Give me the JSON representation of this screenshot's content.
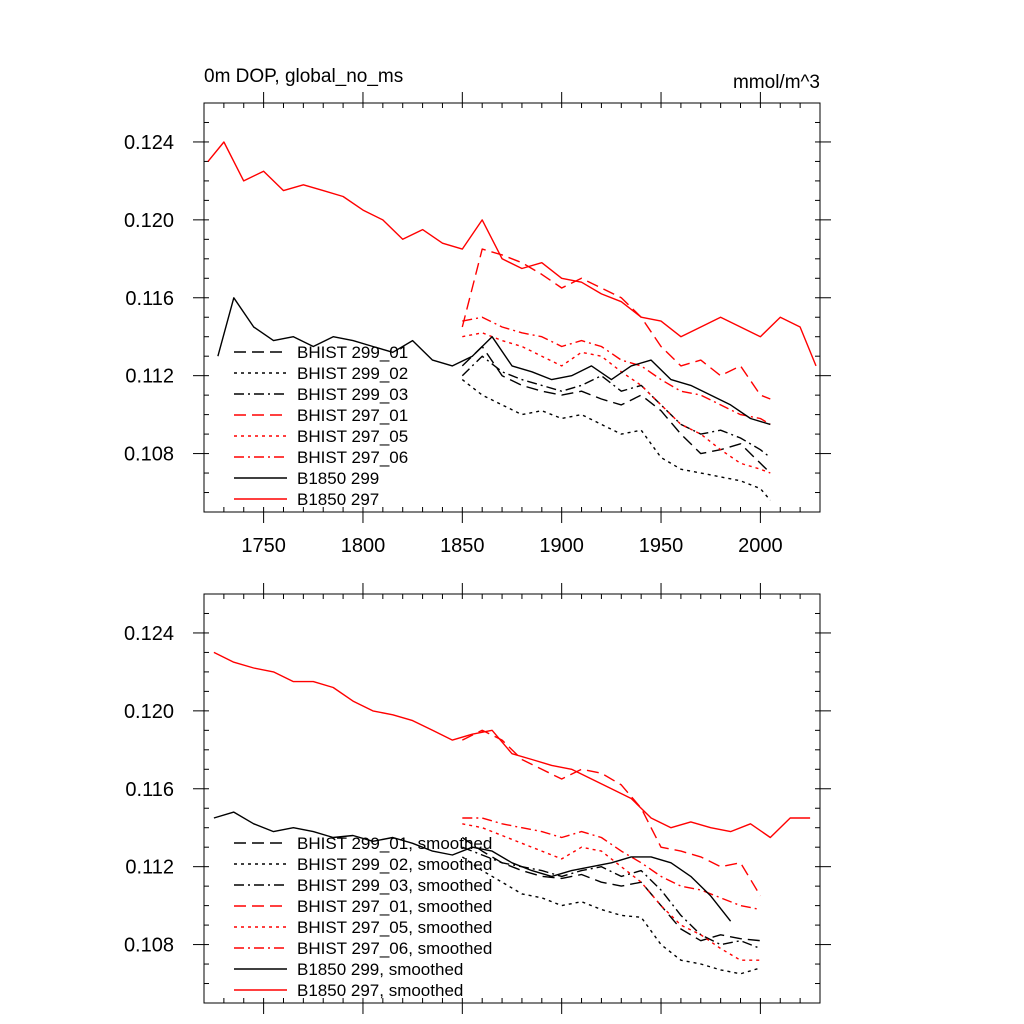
{
  "figure": {
    "title_left": "0m DOP, global_no_ms",
    "title_right": "mmol/m^3"
  },
  "chart_data": [
    {
      "type": "line",
      "title": "0m DOP, global_no_ms",
      "units": "mmol/m^3",
      "xlim": [
        1720,
        2030
      ],
      "ylim": [
        0.105,
        0.126
      ],
      "xticks": [
        1750,
        1800,
        1850,
        1900,
        1950,
        2000
      ],
      "xtick_labels": [
        "1750",
        "1800",
        "1850",
        "1900",
        "1950",
        "2000"
      ],
      "yticks": [
        0.108,
        0.112,
        0.116,
        0.12,
        0.124
      ],
      "ytick_labels": [
        "0.108",
        "0.112",
        "0.116",
        "0.120",
        "0.124"
      ],
      "legend_position": "lower-left",
      "series": [
        {
          "name": "BHIST 299_01",
          "color": "#000000",
          "style": "dash",
          "x": [
            1850,
            1860,
            1870,
            1880,
            1890,
            1900,
            1910,
            1920,
            1930,
            1940,
            1950,
            1960,
            1970,
            1980,
            1990,
            2000,
            2005
          ],
          "y": [
            0.1125,
            0.1135,
            0.112,
            0.1115,
            0.1112,
            0.111,
            0.1112,
            0.1108,
            0.1105,
            0.111,
            0.1102,
            0.109,
            0.108,
            0.1082,
            0.1085,
            0.1075,
            0.107
          ]
        },
        {
          "name": "BHIST 299_02",
          "color": "#000000",
          "style": "dot",
          "x": [
            1850,
            1860,
            1870,
            1880,
            1890,
            1900,
            1910,
            1920,
            1930,
            1940,
            1950,
            1960,
            1970,
            1980,
            1990,
            2000,
            2005
          ],
          "y": [
            0.1118,
            0.111,
            0.1105,
            0.11,
            0.1102,
            0.1098,
            0.11,
            0.1095,
            0.109,
            0.1092,
            0.1078,
            0.1072,
            0.107,
            0.1068,
            0.1066,
            0.1062,
            0.1056
          ]
        },
        {
          "name": "BHIST 299_03",
          "color": "#000000",
          "style": "dashdot",
          "x": [
            1850,
            1860,
            1870,
            1880,
            1890,
            1900,
            1910,
            1920,
            1930,
            1940,
            1950,
            1960,
            1970,
            1980,
            1990,
            2000,
            2005
          ],
          "y": [
            0.112,
            0.113,
            0.1122,
            0.1118,
            0.1115,
            0.1112,
            0.1115,
            0.112,
            0.1112,
            0.1115,
            0.1105,
            0.1095,
            0.109,
            0.1092,
            0.1088,
            0.1082,
            0.1078
          ]
        },
        {
          "name": "BHIST 297_01",
          "color": "#ff0000",
          "style": "dash",
          "x": [
            1850,
            1860,
            1870,
            1880,
            1890,
            1900,
            1910,
            1920,
            1930,
            1940,
            1950,
            1960,
            1970,
            1980,
            1990,
            2000,
            2005
          ],
          "y": [
            0.1145,
            0.1185,
            0.1182,
            0.1178,
            0.1172,
            0.1165,
            0.117,
            0.1165,
            0.116,
            0.115,
            0.1135,
            0.1125,
            0.1128,
            0.112,
            0.1125,
            0.111,
            0.1108
          ]
        },
        {
          "name": "BHIST 297_05",
          "color": "#ff0000",
          "style": "dot",
          "x": [
            1850,
            1860,
            1870,
            1880,
            1890,
            1900,
            1910,
            1920,
            1930,
            1940,
            1950,
            1960,
            1970,
            1980,
            1990,
            2000,
            2005
          ],
          "y": [
            0.114,
            0.1142,
            0.1138,
            0.1135,
            0.113,
            0.1125,
            0.1132,
            0.113,
            0.1122,
            0.1115,
            0.1105,
            0.1095,
            0.109,
            0.1082,
            0.1075,
            0.1072,
            0.107
          ]
        },
        {
          "name": "BHIST 297_06",
          "color": "#ff0000",
          "style": "dashdot",
          "x": [
            1850,
            1860,
            1870,
            1880,
            1890,
            1900,
            1910,
            1920,
            1930,
            1940,
            1950,
            1960,
            1970,
            1980,
            1990,
            2000,
            2005
          ],
          "y": [
            0.1148,
            0.115,
            0.1145,
            0.1142,
            0.114,
            0.1135,
            0.1138,
            0.1135,
            0.1128,
            0.1125,
            0.1118,
            0.1112,
            0.111,
            0.1105,
            0.11,
            0.1098,
            0.1095
          ]
        },
        {
          "name": "B1850 299",
          "color": "#000000",
          "style": "solid",
          "x": [
            1727,
            1735,
            1745,
            1755,
            1765,
            1775,
            1785,
            1795,
            1805,
            1815,
            1825,
            1835,
            1845,
            1855,
            1865,
            1875,
            1885,
            1895,
            1905,
            1915,
            1925,
            1935,
            1945,
            1955,
            1965,
            1975,
            1985,
            1995,
            2005
          ],
          "y": [
            0.113,
            0.116,
            0.1145,
            0.1138,
            0.114,
            0.1135,
            0.114,
            0.1138,
            0.1135,
            0.1132,
            0.1138,
            0.1128,
            0.1125,
            0.113,
            0.114,
            0.1125,
            0.1122,
            0.1118,
            0.112,
            0.1125,
            0.1118,
            0.1125,
            0.1128,
            0.1118,
            0.1115,
            0.111,
            0.1105,
            0.1098,
            0.1095
          ]
        },
        {
          "name": "B1850 297",
          "color": "#ff0000",
          "style": "solid",
          "x": [
            1722,
            1730,
            1740,
            1750,
            1760,
            1770,
            1780,
            1790,
            1800,
            1810,
            1820,
            1830,
            1840,
            1850,
            1860,
            1870,
            1880,
            1890,
            1900,
            1910,
            1920,
            1930,
            1940,
            1950,
            1960,
            1970,
            1980,
            1990,
            2000,
            2010,
            2020,
            2028
          ],
          "y": [
            0.123,
            0.124,
            0.122,
            0.1225,
            0.1215,
            0.1218,
            0.1215,
            0.1212,
            0.1205,
            0.12,
            0.119,
            0.1195,
            0.1188,
            0.1185,
            0.12,
            0.118,
            0.1175,
            0.1178,
            0.117,
            0.1168,
            0.1162,
            0.1158,
            0.115,
            0.1148,
            0.114,
            0.1145,
            0.115,
            0.1145,
            0.114,
            0.115,
            0.1145,
            0.1125
          ]
        }
      ]
    },
    {
      "type": "line",
      "xlim": [
        1720,
        2030
      ],
      "ylim": [
        0.105,
        0.126
      ],
      "xticks": [
        1750,
        1800,
        1850,
        1900,
        1950,
        2000
      ],
      "yticks": [
        0.108,
        0.112,
        0.116,
        0.12,
        0.124
      ],
      "ytick_labels": [
        "0.108",
        "0.112",
        "0.116",
        "0.120",
        "0.124"
      ],
      "legend_position": "lower-left",
      "series": [
        {
          "name": "BHIST 299_01, smoothed",
          "color": "#000000",
          "style": "dash",
          "x": [
            1850,
            1860,
            1870,
            1880,
            1890,
            1900,
            1910,
            1920,
            1930,
            1940,
            1950,
            1960,
            1970,
            1980,
            1990,
            2000
          ],
          "y": [
            0.1135,
            0.1128,
            0.1122,
            0.1118,
            0.1115,
            0.1114,
            0.1116,
            0.1112,
            0.111,
            0.1112,
            0.11,
            0.1088,
            0.1082,
            0.1085,
            0.1083,
            0.1082
          ]
        },
        {
          "name": "BHIST 299_02, smoothed",
          "color": "#000000",
          "style": "dot",
          "x": [
            1850,
            1860,
            1870,
            1880,
            1890,
            1900,
            1910,
            1920,
            1930,
            1940,
            1950,
            1960,
            1970,
            1980,
            1990,
            2000
          ],
          "y": [
            0.1125,
            0.1118,
            0.1112,
            0.1106,
            0.1104,
            0.11,
            0.1102,
            0.1098,
            0.1095,
            0.1094,
            0.108,
            0.1072,
            0.107,
            0.1067,
            0.1065,
            0.1068
          ]
        },
        {
          "name": "BHIST 299_03, smoothed",
          "color": "#000000",
          "style": "dashdot",
          "x": [
            1850,
            1860,
            1870,
            1880,
            1890,
            1900,
            1910,
            1920,
            1930,
            1940,
            1950,
            1960,
            1970,
            1980,
            1990,
            2000
          ],
          "y": [
            0.113,
            0.1126,
            0.1122,
            0.112,
            0.1118,
            0.1115,
            0.1118,
            0.112,
            0.1115,
            0.1118,
            0.1108,
            0.1095,
            0.1085,
            0.108,
            0.1082,
            0.1078
          ]
        },
        {
          "name": "BHIST 297_01, smoothed",
          "color": "#ff0000",
          "style": "dash",
          "x": [
            1850,
            1860,
            1870,
            1880,
            1890,
            1900,
            1910,
            1920,
            1930,
            1940,
            1950,
            1960,
            1970,
            1980,
            1990,
            2000
          ],
          "y": [
            0.1185,
            0.119,
            0.1185,
            0.1175,
            0.117,
            0.1165,
            0.117,
            0.1168,
            0.1162,
            0.115,
            0.113,
            0.1128,
            0.1125,
            0.112,
            0.1122,
            0.1105
          ]
        },
        {
          "name": "BHIST 297_05, smoothed",
          "color": "#ff0000",
          "style": "dot",
          "x": [
            1850,
            1860,
            1870,
            1880,
            1890,
            1900,
            1910,
            1920,
            1930,
            1940,
            1950,
            1960,
            1970,
            1980,
            1990,
            2000
          ],
          "y": [
            0.1142,
            0.114,
            0.1136,
            0.1132,
            0.1128,
            0.1124,
            0.113,
            0.1128,
            0.112,
            0.1112,
            0.11,
            0.109,
            0.1085,
            0.1078,
            0.1072,
            0.1072
          ]
        },
        {
          "name": "BHIST 297_06, smoothed",
          "color": "#ff0000",
          "style": "dashdot",
          "x": [
            1850,
            1860,
            1870,
            1880,
            1890,
            1900,
            1910,
            1920,
            1930,
            1940,
            1950,
            1960,
            1970,
            1980,
            1990,
            2000
          ],
          "y": [
            0.1145,
            0.1145,
            0.1142,
            0.114,
            0.1138,
            0.1135,
            0.1138,
            0.1135,
            0.1128,
            0.1122,
            0.1115,
            0.111,
            0.1108,
            0.1104,
            0.11,
            0.1098
          ]
        },
        {
          "name": "B1850 299, smoothed",
          "color": "#000000",
          "style": "solid",
          "x": [
            1725,
            1735,
            1745,
            1755,
            1765,
            1775,
            1785,
            1795,
            1805,
            1815,
            1825,
            1835,
            1845,
            1855,
            1865,
            1875,
            1885,
            1895,
            1905,
            1915,
            1925,
            1935,
            1945,
            1955,
            1965,
            1975,
            1985
          ],
          "y": [
            0.1145,
            0.1148,
            0.1142,
            0.1138,
            0.114,
            0.1138,
            0.1135,
            0.1136,
            0.1133,
            0.1135,
            0.1132,
            0.1128,
            0.1126,
            0.113,
            0.1128,
            0.1122,
            0.1118,
            0.1115,
            0.1118,
            0.112,
            0.1122,
            0.1125,
            0.1125,
            0.1122,
            0.1115,
            0.1105,
            0.1092
          ]
        },
        {
          "name": "B1850 297, smoothed",
          "color": "#ff0000",
          "style": "solid",
          "x": [
            1725,
            1735,
            1745,
            1755,
            1765,
            1775,
            1785,
            1795,
            1805,
            1815,
            1825,
            1835,
            1845,
            1855,
            1865,
            1875,
            1885,
            1895,
            1905,
            1915,
            1925,
            1935,
            1945,
            1955,
            1965,
            1975,
            1985,
            1995,
            2005,
            2015,
            2025
          ],
          "y": [
            0.123,
            0.1225,
            0.1222,
            0.122,
            0.1215,
            0.1215,
            0.1212,
            0.1205,
            0.12,
            0.1198,
            0.1195,
            0.119,
            0.1185,
            0.1188,
            0.119,
            0.1178,
            0.1175,
            0.1172,
            0.117,
            0.1165,
            0.116,
            0.1155,
            0.1145,
            0.114,
            0.1143,
            0.114,
            0.1138,
            0.1142,
            0.1135,
            0.1145,
            0.1145
          ]
        }
      ]
    }
  ]
}
